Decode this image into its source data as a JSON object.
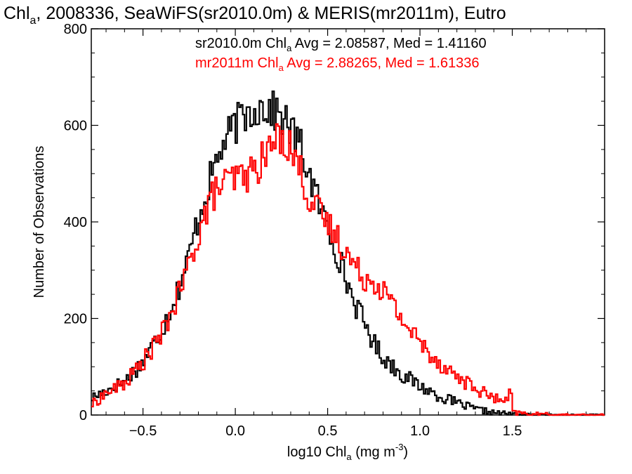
{
  "chart_data": {
    "type": "line",
    "title": {
      "prefix": "Chl",
      "sub": "a",
      "rest": ", 2008336, SeaWiFS(sr2010.0m) & MERIS(mr2011m), Eutro"
    },
    "xlabel": {
      "prefix": "log10 Chl",
      "sub": "a",
      "mid": " (mg m",
      "sup": "-3",
      "suffix": ")"
    },
    "ylabel": "Number of Observations",
    "xlim": [
      -0.78,
      2.0
    ],
    "ylim": [
      0,
      800
    ],
    "x_ticks": [
      -0.5,
      0.0,
      0.5,
      1.0,
      1.5
    ],
    "x_tick_labels": [
      "−0.5",
      "0.0",
      "0.5",
      "1.0",
      "1.5"
    ],
    "y_ticks": [
      0,
      200,
      400,
      600,
      800
    ],
    "y_tick_labels": [
      "0",
      "200",
      "400",
      "600",
      "800"
    ],
    "annotations": [
      {
        "color": "#000000",
        "prefix": "sr2010.0m Chl",
        "sub": "a",
        "suffix": " Avg = 2.08587, Med = 1.41160"
      },
      {
        "color": "#ff0000",
        "prefix": "mr2011m Chl",
        "sub": "a",
        "suffix": " Avg = 2.88265, Med = 1.61336"
      }
    ],
    "bin_width": 0.01,
    "series": [
      {
        "color": "#000000",
        "x": [
          -0.78,
          -0.7,
          -0.6,
          -0.5,
          -0.4,
          -0.3,
          -0.25,
          -0.2,
          -0.15,
          -0.1,
          -0.05,
          0.0,
          0.05,
          0.1,
          0.15,
          0.2,
          0.25,
          0.3,
          0.35,
          0.4,
          0.45,
          0.5,
          0.55,
          0.6,
          0.65,
          0.7,
          0.75,
          0.8,
          0.9,
          1.0,
          1.1,
          1.2,
          1.3,
          1.4,
          1.5,
          1.6
        ],
        "values": [
          35,
          50,
          70,
          110,
          175,
          270,
          330,
          410,
          470,
          530,
          570,
          600,
          620,
          635,
          640,
          630,
          620,
          590,
          560,
          500,
          440,
          390,
          340,
          280,
          230,
          190,
          150,
          120,
          85,
          60,
          40,
          25,
          12,
          5,
          2,
          0
        ]
      },
      {
        "color": "#ff0000",
        "x": [
          -0.78,
          -0.7,
          -0.6,
          -0.5,
          -0.4,
          -0.3,
          -0.25,
          -0.2,
          -0.15,
          -0.1,
          -0.05,
          0.0,
          0.05,
          0.1,
          0.15,
          0.2,
          0.25,
          0.3,
          0.35,
          0.4,
          0.45,
          0.5,
          0.55,
          0.6,
          0.65,
          0.7,
          0.75,
          0.8,
          0.9,
          1.0,
          1.1,
          1.2,
          1.3,
          1.4,
          1.48,
          1.49,
          1.5,
          1.6,
          1.7,
          1.8,
          1.98
        ],
        "values": [
          20,
          45,
          65,
          110,
          165,
          255,
          310,
          375,
          430,
          470,
          480,
          490,
          495,
          505,
          530,
          560,
          580,
          555,
          510,
          450,
          420,
          395,
          370,
          340,
          305,
          285,
          280,
          260,
          200,
          150,
          110,
          80,
          55,
          35,
          25,
          72,
          5,
          2,
          1,
          0,
          0
        ]
      }
    ]
  }
}
